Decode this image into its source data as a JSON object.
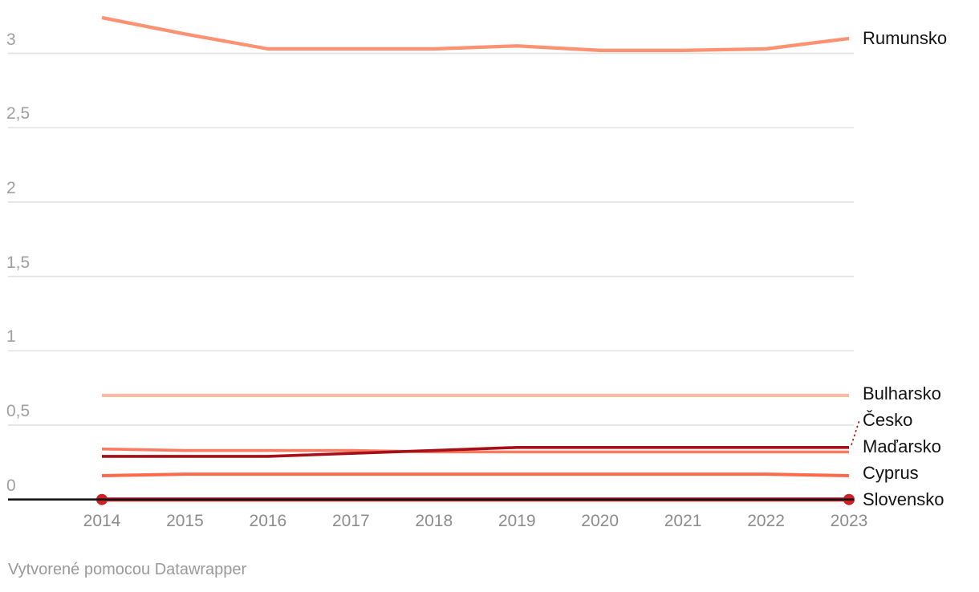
{
  "footer": {
    "attribution": "Vytvorené pomocou Datawrapper"
  },
  "colors": {
    "background": "#ffffff",
    "gridline": "#e3e3e3",
    "axis_line": "#151515",
    "y_tick_label": "#a0a0a0",
    "x_tick_label": "#8d8d8d",
    "series_label": "#131313",
    "footer_text": "#9a9a9a"
  },
  "chart_data": {
    "type": "line",
    "title": "",
    "xlabel": "",
    "ylabel": "",
    "grid": true,
    "legend_position": "right-of-line-ends",
    "xlim": [
      2014,
      2023
    ],
    "ylim": [
      0,
      3.3
    ],
    "x": [
      2014,
      2015,
      2016,
      2017,
      2018,
      2019,
      2020,
      2021,
      2022,
      2023
    ],
    "x_tick_labels": [
      "2014",
      "2015",
      "2016",
      "2017",
      "2018",
      "2019",
      "2020",
      "2021",
      "2022",
      "2023"
    ],
    "y_ticks": [
      {
        "value": 3,
        "label": "3"
      },
      {
        "value": 2.5,
        "label": "2,5"
      },
      {
        "value": 2,
        "label": "2"
      },
      {
        "value": 1.5,
        "label": "1,5"
      },
      {
        "value": 1,
        "label": "1"
      },
      {
        "value": 0.5,
        "label": "0,5"
      },
      {
        "value": 0,
        "label": "0"
      }
    ],
    "series": [
      {
        "name": "Bulharsko",
        "color": "#fcbba1",
        "stroke_width": 4.2,
        "values": [
          0.7,
          0.7,
          0.7,
          0.7,
          0.7,
          0.7,
          0.7,
          0.7,
          0.7,
          0.7
        ]
      },
      {
        "name": "Maďarsko",
        "color": "#fb7a61",
        "stroke_width": 3.6,
        "values": [
          0.34,
          0.33,
          0.33,
          0.33,
          0.32,
          0.32,
          0.32,
          0.32,
          0.32,
          0.32
        ]
      },
      {
        "name": "Cyprus",
        "color": "#fb6a4a",
        "stroke_width": 4.0,
        "values": [
          0.16,
          0.17,
          0.17,
          0.17,
          0.17,
          0.17,
          0.17,
          0.17,
          0.17,
          0.16
        ]
      },
      {
        "name": "Rumunsko",
        "color": "#fc9272",
        "stroke_width": 4.3,
        "values": [
          3.24,
          3.13,
          3.03,
          3.03,
          3.03,
          3.05,
          3.02,
          3.02,
          3.03,
          3.1
        ]
      },
      {
        "name": "Česko",
        "color": "#a50f15",
        "stroke_width": 3.6,
        "values": [
          0.29,
          0.29,
          0.29,
          0.31,
          0.33,
          0.35,
          0.35,
          0.35,
          0.35,
          0.35
        ]
      },
      {
        "name": "Slovensko",
        "color": "#cb2127",
        "stroke_width": 5.2,
        "endpoint_dots": true,
        "values": [
          0,
          0,
          0,
          0,
          0,
          0,
          0,
          0,
          0,
          0
        ]
      }
    ]
  }
}
